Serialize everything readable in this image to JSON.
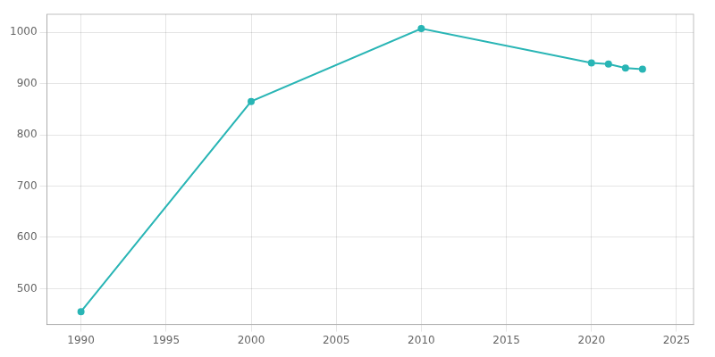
{
  "chart_data": {
    "type": "line",
    "x": [
      1990,
      2000,
      2010,
      2020,
      2021,
      2022,
      2023
    ],
    "values": [
      455,
      865,
      1007,
      940,
      938,
      930,
      928
    ],
    "color": "#29b5b5",
    "marker": "circle",
    "xlim": [
      1988,
      2026
    ],
    "ylim": [
      430,
      1035
    ],
    "xticks": [
      1990,
      1995,
      2000,
      2005,
      2010,
      2015,
      2020,
      2025
    ],
    "yticks": [
      500,
      600,
      700,
      800,
      900,
      1000
    ],
    "grid": true
  }
}
